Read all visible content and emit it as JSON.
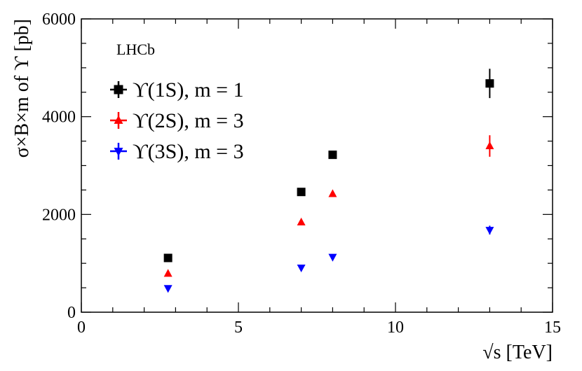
{
  "chart_data": {
    "type": "scatter",
    "experiment_label": "LHCb",
    "xlabel": "√s [TeV]",
    "ylabel": "σ×B×m of ϒ [pb]",
    "xlim": [
      0,
      15
    ],
    "ylim": [
      0,
      6000
    ],
    "x_ticks": [
      "0",
      "5",
      "10",
      "15"
    ],
    "y_ticks": [
      "0",
      "2000",
      "4000",
      "6000"
    ],
    "grid": false,
    "legend_position": "top-left",
    "series": [
      {
        "name": "ϒ(1S), m = 1",
        "color": "#000000",
        "marker": "square",
        "points": [
          {
            "x": 2.76,
            "y": 1110,
            "err": 30
          },
          {
            "x": 7,
            "y": 2460,
            "err": 40
          },
          {
            "x": 8,
            "y": 3220,
            "err": 80
          },
          {
            "x": 13,
            "y": 4680,
            "err": 300
          }
        ]
      },
      {
        "name": "ϒ(2S), m = 3",
        "color": "#ff0000",
        "marker": "triangle-up",
        "points": [
          {
            "x": 2.76,
            "y": 790,
            "err": 30
          },
          {
            "x": 7,
            "y": 1840,
            "err": 40
          },
          {
            "x": 8,
            "y": 2420,
            "err": 50
          },
          {
            "x": 13,
            "y": 3400,
            "err": 220
          }
        ]
      },
      {
        "name": "ϒ(3S), m = 3",
        "color": "#0000ff",
        "marker": "triangle-down",
        "points": [
          {
            "x": 2.76,
            "y": 490,
            "err": 20
          },
          {
            "x": 7,
            "y": 910,
            "err": 25
          },
          {
            "x": 8,
            "y": 1130,
            "err": 30
          },
          {
            "x": 13,
            "y": 1680,
            "err": 90
          }
        ]
      }
    ]
  }
}
